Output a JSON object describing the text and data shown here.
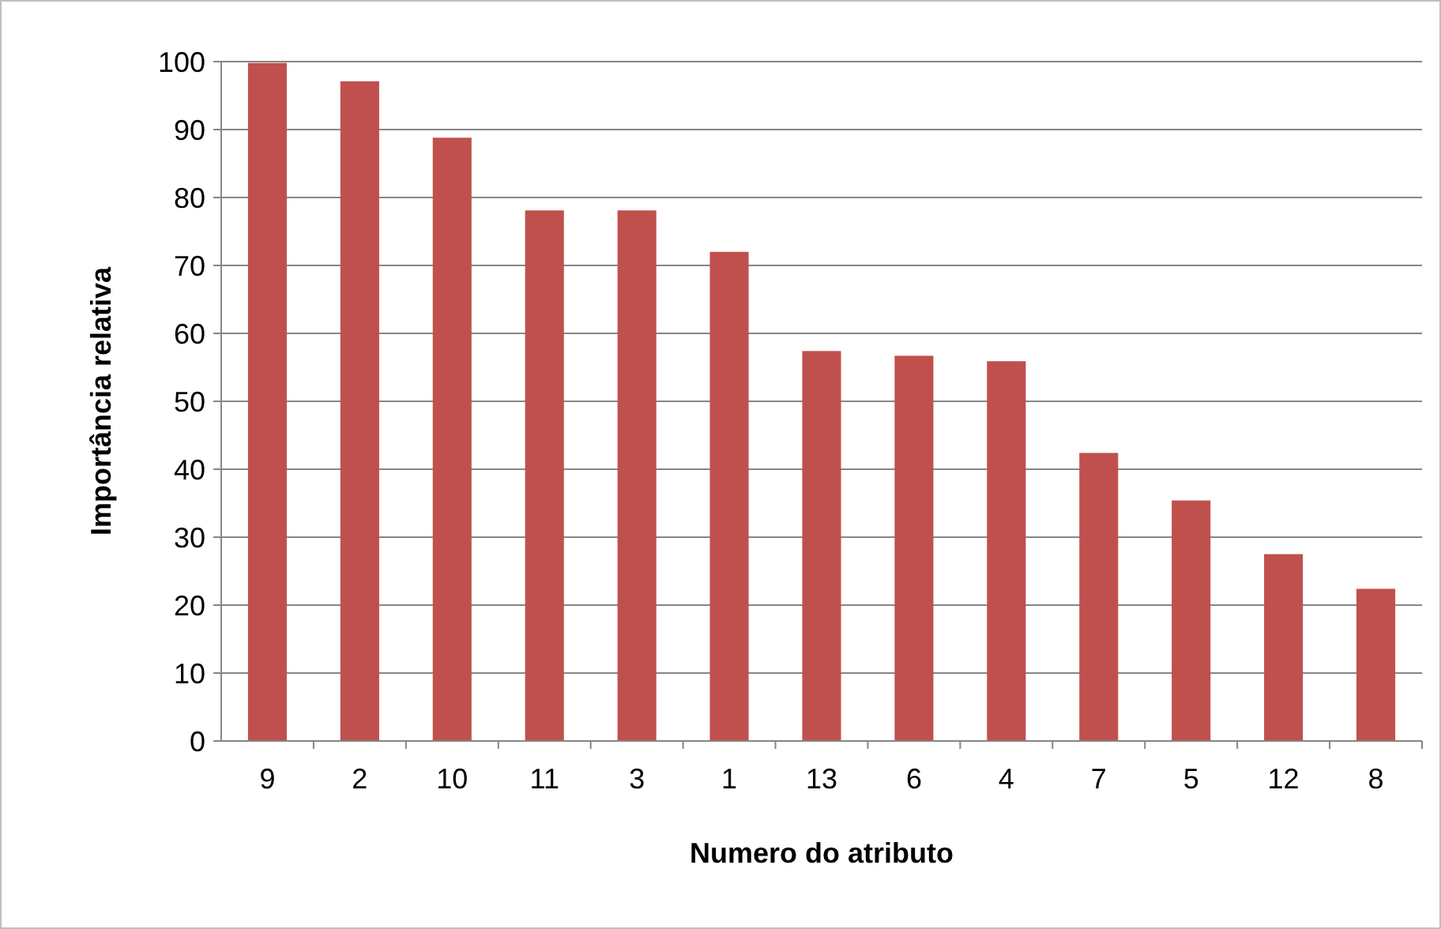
{
  "chart_data": {
    "type": "bar",
    "xlabel": "Numero do atributo",
    "ylabel": "Importância relativa",
    "categories": [
      "9",
      "2",
      "10",
      "11",
      "3",
      "1",
      "13",
      "6",
      "4",
      "7",
      "5",
      "12",
      "8"
    ],
    "values": [
      99.8,
      97.1,
      88.8,
      78.1,
      78.1,
      72,
      57.4,
      56.7,
      55.9,
      42.4,
      35.4,
      27.5,
      22.4
    ],
    "color": "#c0504d",
    "ylim": [
      0,
      100
    ],
    "yticks": [
      0,
      10,
      20,
      30,
      40,
      50,
      60,
      70,
      80,
      90,
      100
    ],
    "grid": "y"
  }
}
